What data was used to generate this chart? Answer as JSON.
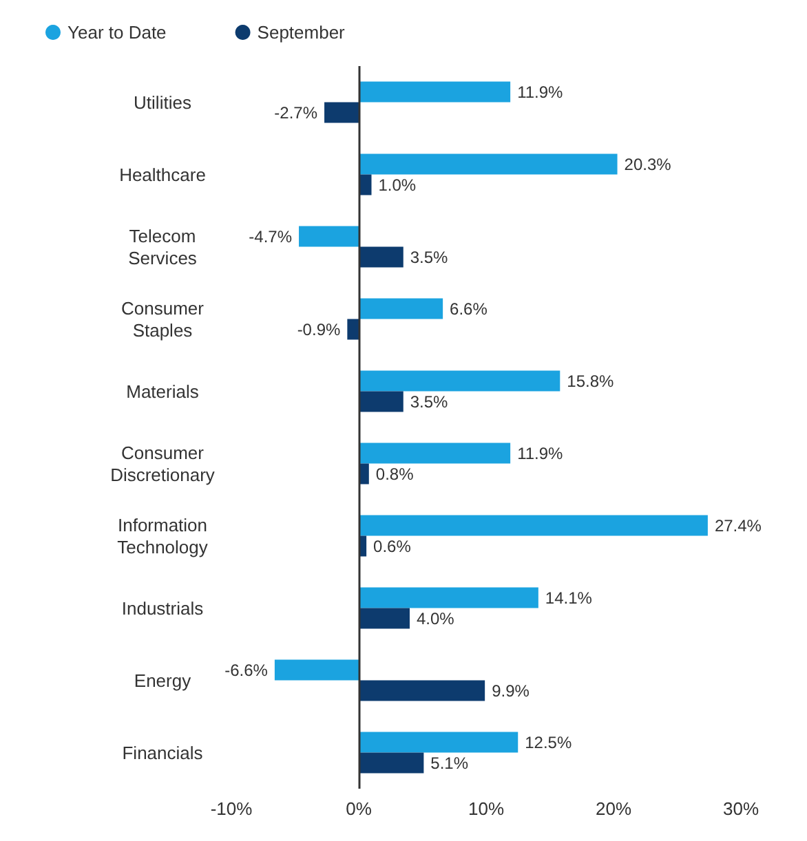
{
  "chart_data": {
    "type": "bar",
    "orientation": "horizontal",
    "categories": [
      "Utilities",
      "Healthcare",
      "Telecom\nServices",
      "Consumer\nStaples",
      "Materials",
      "Consumer\nDiscretionary",
      "Information\nTechnology",
      "Industrials",
      "Energy",
      "Financials"
    ],
    "series": [
      {
        "name": "Year to Date",
        "color": "#1ba3e0",
        "values": [
          11.9,
          20.3,
          -4.7,
          6.6,
          15.8,
          11.9,
          27.4,
          14.1,
          -6.6,
          12.5
        ],
        "value_labels": [
          "11.9%",
          "20.3%",
          "-4.7%",
          "6.6%",
          "15.8%",
          "11.9%",
          "27.4%",
          "14.1%",
          "-6.6%",
          "12.5%"
        ]
      },
      {
        "name": "September",
        "color": "#0d3b6e",
        "values": [
          -2.7,
          1.0,
          3.5,
          -0.9,
          3.5,
          0.8,
          0.6,
          4.0,
          9.9,
          5.1
        ],
        "value_labels": [
          "-2.7%",
          "1.0%",
          "3.5%",
          "-0.9%",
          "3.5%",
          "0.8%",
          "0.6%",
          "4.0%",
          "9.9%",
          "5.1%"
        ]
      }
    ],
    "xlim": [
      -10,
      30
    ],
    "xticks": [
      {
        "value": -10,
        "label": "-10%"
      },
      {
        "value": 0,
        "label": "0%"
      },
      {
        "value": 10,
        "label": "10%"
      },
      {
        "value": 20,
        "label": "20%"
      },
      {
        "value": 30,
        "label": "30%"
      }
    ],
    "ref_lines": [
      {
        "axis": "x",
        "value": 0,
        "color": "#333333"
      }
    ],
    "grid": false,
    "legend": "top left"
  }
}
